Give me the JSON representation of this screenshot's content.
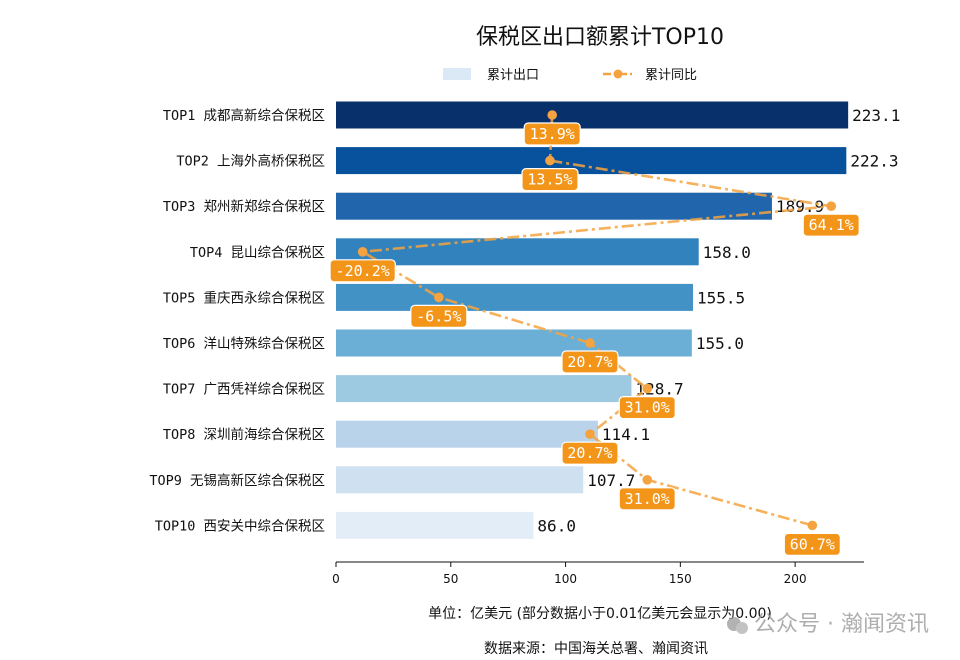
{
  "chart_data": {
    "type": "bar",
    "orientation": "horizontal",
    "title": "保税区出口额累计TOP10",
    "categories": [
      "TOP1 成都高新综合保税区",
      "TOP2 上海外高桥保税区",
      "TOP3 郑州新郑综合保税区",
      "TOP4 昆山综合保税区",
      "TOP5 重庆西永综合保税区",
      "TOP6 洋山特殊综合保税区",
      "TOP7 广西凭祥综合保税区",
      "TOP8 深圳前海综合保税区",
      "TOP9 无锡高新区综合保税区",
      "TOP10 西安关中综合保税区"
    ],
    "value_labels": [
      "223.1",
      "222.3",
      "189.9",
      "158.0",
      "155.5",
      "155.0",
      "128.7",
      "114.1",
      "107.7",
      "86.0"
    ],
    "series": [
      {
        "name": "累计出口",
        "type": "bar",
        "values": [
          223.1,
          222.3,
          189.9,
          158.0,
          155.5,
          155.0,
          128.7,
          114.1,
          107.7,
          86.0
        ],
        "colors": [
          "#08306b",
          "#08519c",
          "#2166ac",
          "#3182bd",
          "#4292c6",
          "#6baed6",
          "#9ecae1",
          "#b9d3ea",
          "#cfe0f1",
          "#e3edf8"
        ]
      },
      {
        "name": "累计同比",
        "type": "line",
        "color": "#f4a340",
        "values": [
          13.9,
          13.5,
          64.1,
          -20.2,
          -6.5,
          20.7,
          31.0,
          20.7,
          31.0,
          60.7
        ],
        "labels": [
          "13.9%",
          "13.5%",
          "64.1%",
          "-20.2%",
          "-6.5%",
          "20.7%",
          "31.0%",
          "20.7%",
          "31.0%",
          "60.7%"
        ]
      }
    ],
    "xlim": [
      0,
      230
    ],
    "xticks": [
      "0",
      "50",
      "100",
      "150",
      "200"
    ],
    "xtick_values": [
      0,
      50,
      100,
      150,
      200
    ],
    "pct_axis_range": [
      -25,
      70
    ],
    "legend_position": "top-center",
    "grid": false
  },
  "footer": {
    "unit": "单位：亿美元  (部分数据小于0.01亿美元会显示为0.00)",
    "source": "数据来源：中国海关总署、瀚闻资讯"
  },
  "watermark": "公众号 · 瀚闻资讯",
  "colors": {
    "line": "#f4a340",
    "label_bg": "#f39519"
  }
}
